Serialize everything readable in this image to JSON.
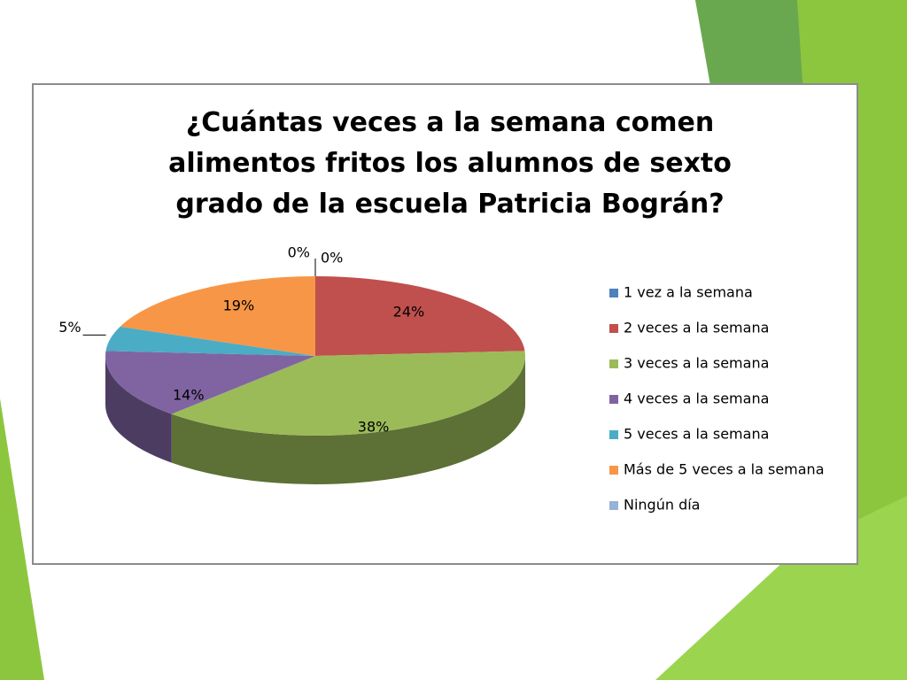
{
  "chart_data": {
    "type": "pie",
    "title": "¿Cuántas veces a la semana comen alimentos fritos los alumnos de sexto grado de la escuela Patricia Bográn?",
    "categories": [
      "1 vez a la semana",
      "2 veces a la semana",
      "3 veces a la semana",
      "4 veces a la semana",
      "5 veces a la semana",
      "Más de 5 veces a la semana",
      "Ningún día"
    ],
    "values": [
      0,
      24,
      38,
      14,
      5,
      19,
      0
    ],
    "value_labels": [
      "0%",
      "24%",
      "38%",
      "14%",
      "5%",
      "19%",
      "0%"
    ],
    "colors": [
      "#4f81bd",
      "#c0504d",
      "#9bbb59",
      "#8064a2",
      "#4bacc6",
      "#f79646",
      "#95b3d7"
    ],
    "legend": "right"
  }
}
